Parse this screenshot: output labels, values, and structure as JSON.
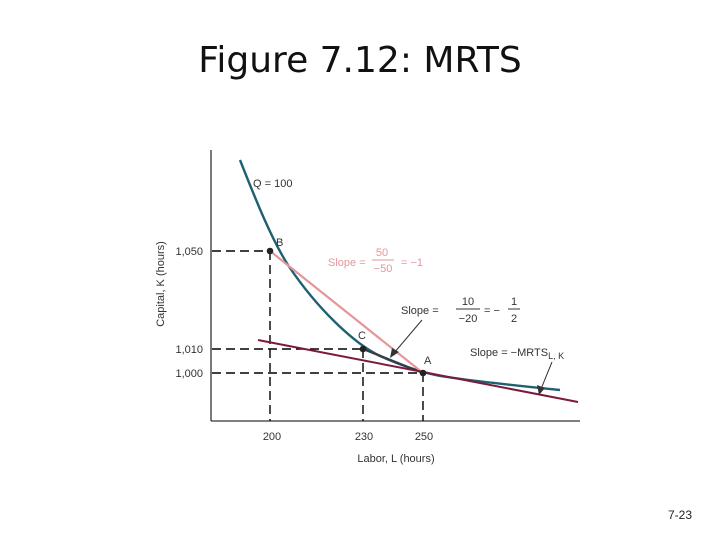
{
  "title": "Figure 7.12: MRTS",
  "page_number": "7-23",
  "colors": {
    "isoquant": "#1f6072",
    "chord": "#e5959b",
    "tangent": "#7b1a3a",
    "points": "#222222",
    "dashes": "#000000",
    "axes": "#333333"
  },
  "diagram": {
    "curve_label": "Q = 100",
    "axis_x": "Labor, L (hours)",
    "axis_y": "Capital, K (hours)",
    "x_ticks": [
      "200",
      "230",
      "250"
    ],
    "y_ticks": [
      "1,050",
      "1,010",
      "1,000"
    ],
    "points": [
      {
        "name": "B",
        "L": 200,
        "K": 1050
      },
      {
        "name": "C",
        "L": 230,
        "K": 1010
      },
      {
        "name": "A",
        "L": 250,
        "K": 1000
      }
    ],
    "slope_labels": {
      "bc": {
        "prefix": "Slope =",
        "num": "50",
        "den": "−50",
        "result": "= −1"
      },
      "ca": {
        "prefix": "Slope =",
        "num": "10",
        "den": "−20",
        "mid": "= −",
        "num2": "1",
        "den2": "2"
      },
      "mrts": {
        "text": "Slope = −MRTS",
        "sub": "L, K"
      }
    }
  }
}
